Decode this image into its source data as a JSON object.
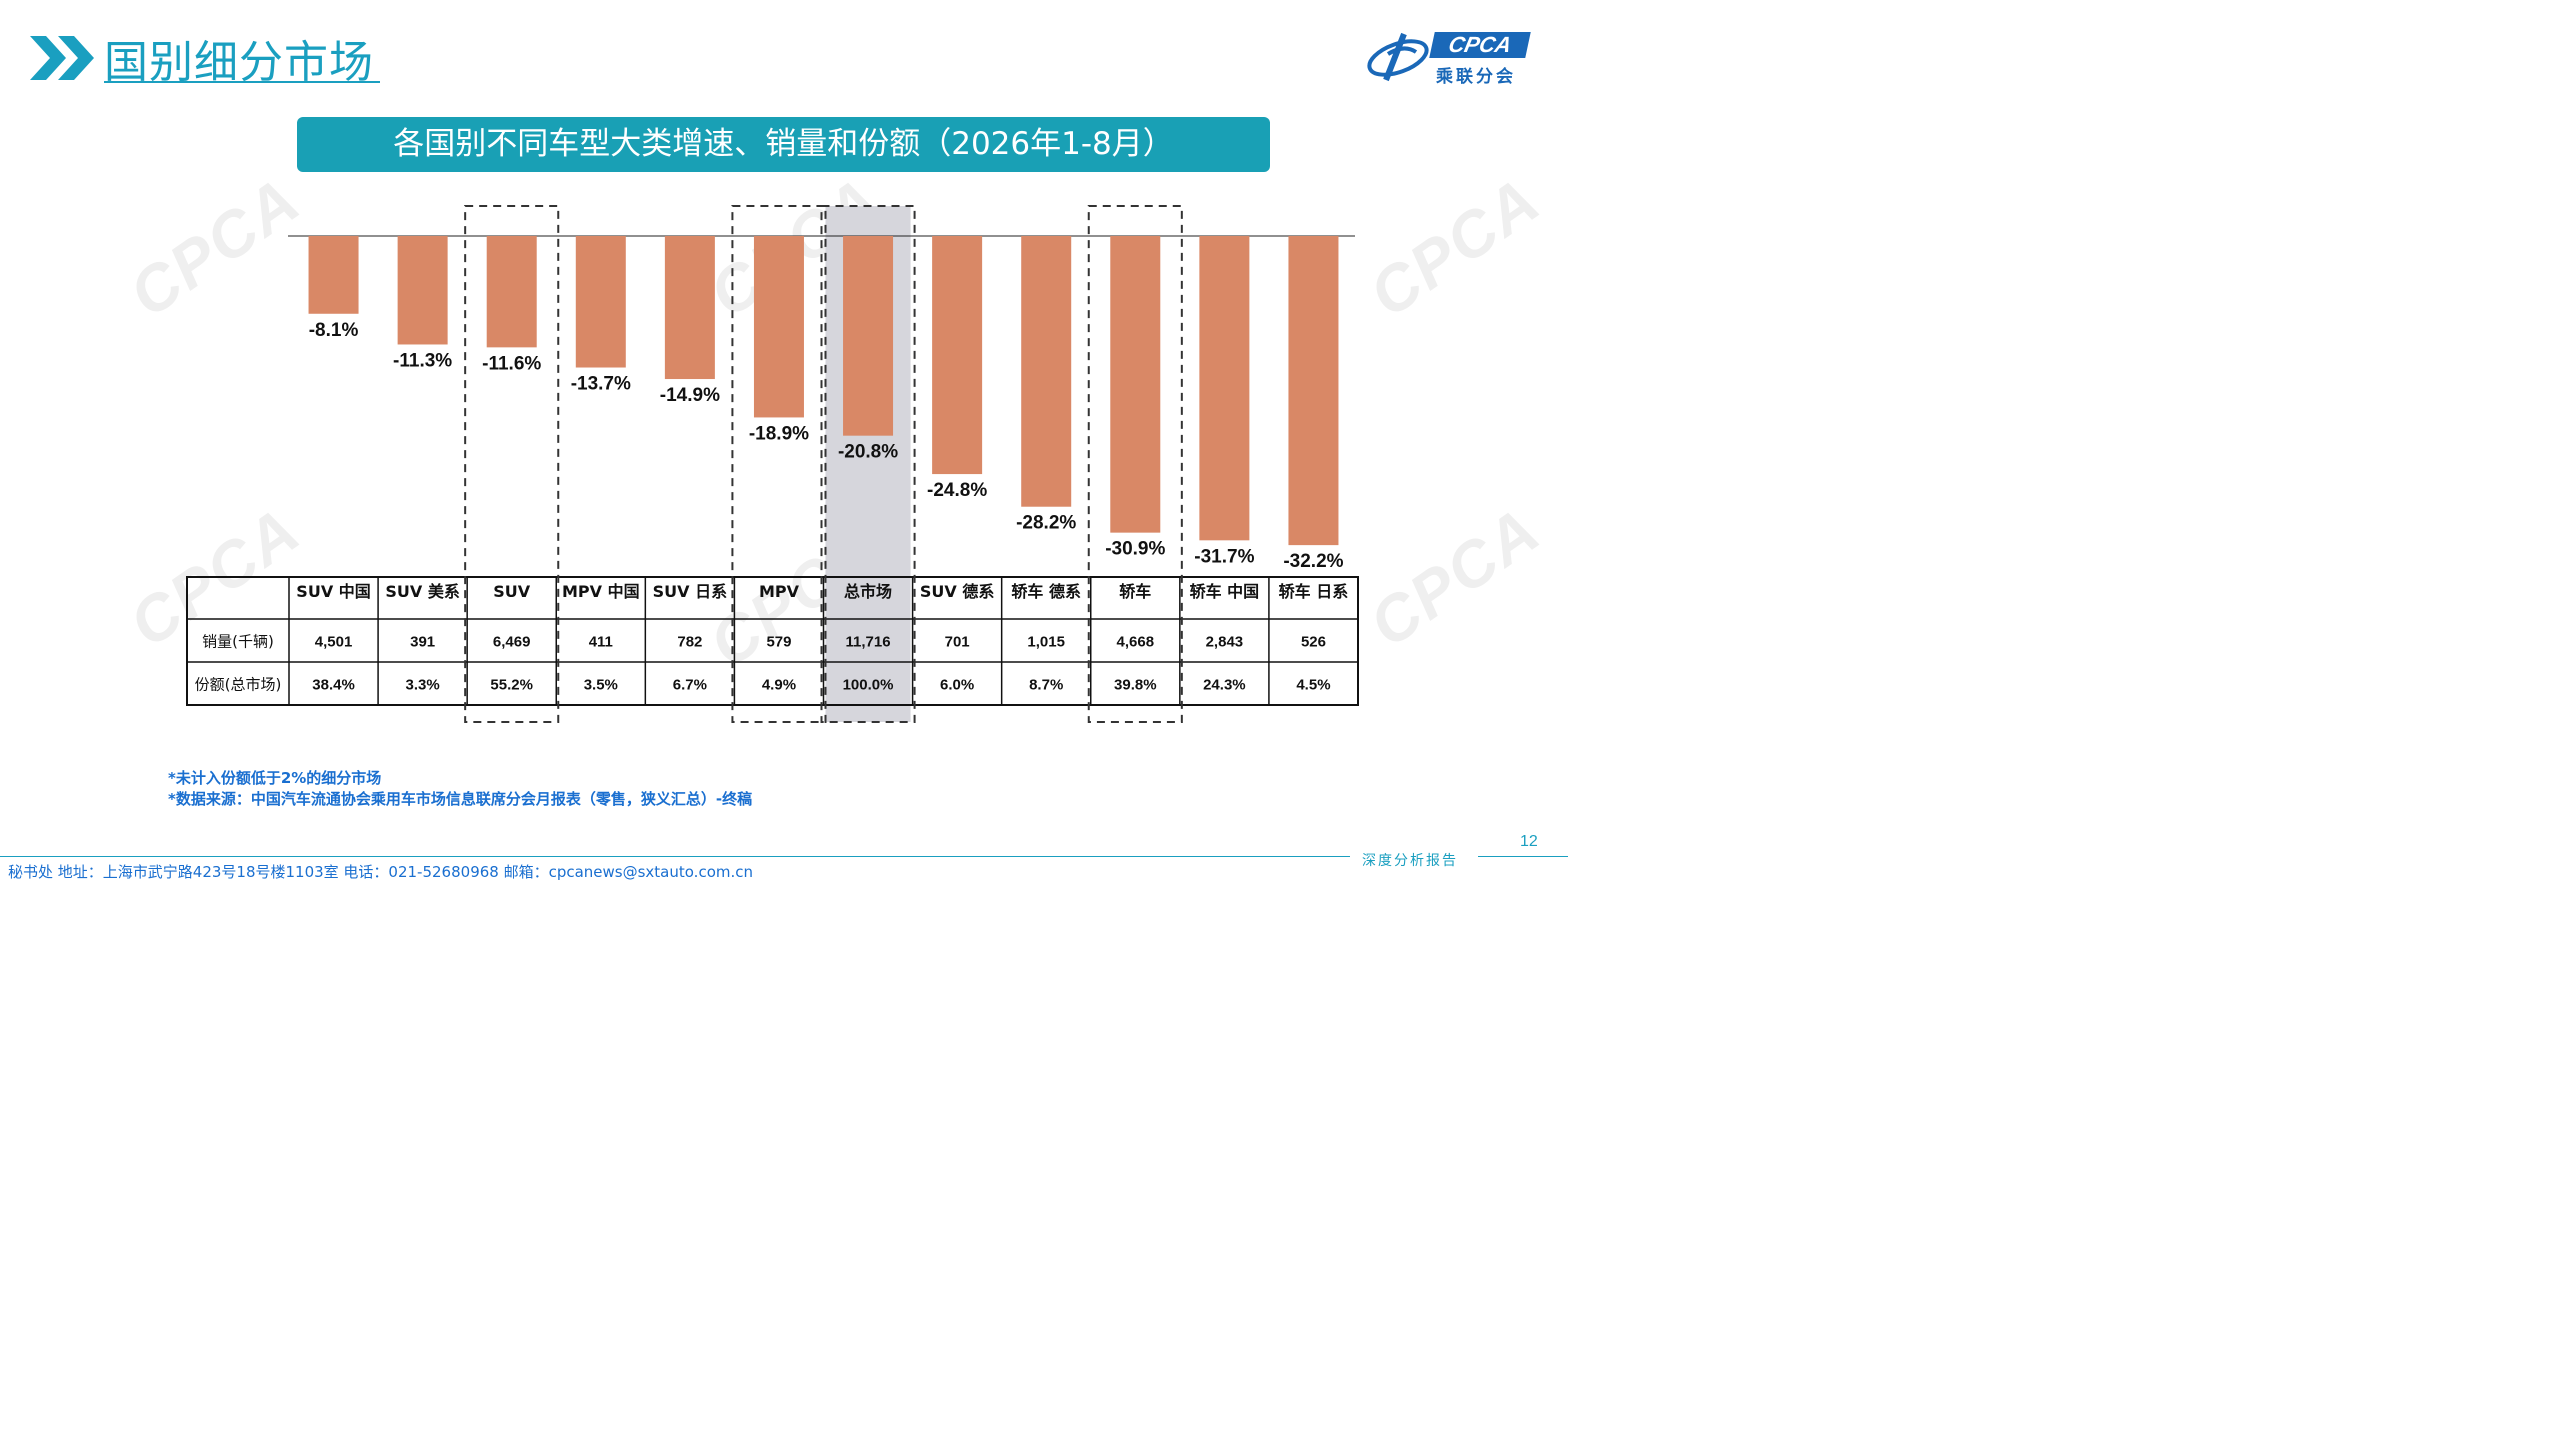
{
  "header": {
    "title": "国别细分市场",
    "logo_text": "CPCA",
    "logo_subtext": "乘联分会",
    "accent_color": "#1a9fc0"
  },
  "banner": {
    "text": "各国别不同车型大类增速、销量和份额（2026年1-8月）"
  },
  "chart_data": {
    "type": "bar",
    "title": "",
    "categories": [
      "SUV 中国",
      "SUV 美系",
      "SUV",
      "MPV 中国",
      "SUV 日系",
      "MPV",
      "总市场",
      "SUV 德系",
      "轿车 德系",
      "轿车",
      "轿车 中国",
      "轿车 日系"
    ],
    "values": [
      -8.1,
      -11.3,
      -11.6,
      -13.7,
      -14.9,
      -18.9,
      -20.8,
      -24.8,
      -28.2,
      -30.9,
      -31.7,
      -32.2
    ],
    "value_labels": [
      "-8.1%",
      "-11.3%",
      "-11.6%",
      "-13.7%",
      "-14.9%",
      "-18.9%",
      "-20.8%",
      "-24.8%",
      "-28.2%",
      "-30.9%",
      "-31.7%",
      "-32.2%"
    ],
    "ylim": [
      -35,
      0
    ],
    "bar_color": "#d98866",
    "dashed_box_categories": [
      "SUV",
      "MPV",
      "轿车"
    ],
    "highlighted_category": "总市场",
    "highlight_color": "#d6d6dc",
    "table": {
      "rows": [
        {
          "label": "销量(千辆)",
          "values": [
            "4,501",
            "391",
            "6,469",
            "411",
            "782",
            "579",
            "11,716",
            "701",
            "1,015",
            "4,668",
            "2,843",
            "526"
          ]
        },
        {
          "label": "份额(总市场)",
          "values": [
            "38.4%",
            "3.3%",
            "55.2%",
            "3.5%",
            "6.7%",
            "4.9%",
            "100.0%",
            "6.0%",
            "8.7%",
            "39.8%",
            "24.3%",
            "4.5%"
          ]
        }
      ]
    }
  },
  "notes": [
    "*未计入份额低于2%的细分市场",
    "*数据来源：中国汽车流通协会乘用车市场信息联席分会月报表（零售，狭义汇总）-终稿"
  ],
  "footer": {
    "page_number": "12",
    "tag": "深度分析报告",
    "contact": "秘书处   地址：上海市武宁路423号18号楼1103室   电话：021-52680968   邮箱：cpcanews@sxtauto.com.cn"
  }
}
